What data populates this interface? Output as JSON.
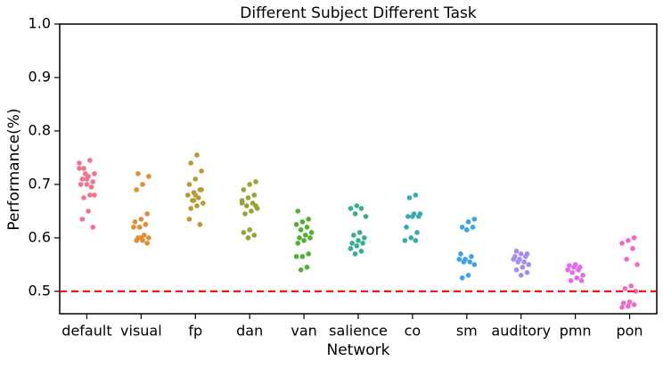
{
  "chart_data": {
    "type": "strip",
    "title": "Different Subject Different Task",
    "x_label": "Network",
    "y_label": "Performance(%)",
    "categories": [
      "default",
      "visual",
      "fp",
      "dan",
      "van",
      "salience",
      "co",
      "sm",
      "auditory",
      "pmn",
      "pon"
    ],
    "colors": [
      "#f77189",
      "#e68c2f",
      "#bb9832",
      "#97a431",
      "#50b131",
      "#34af8f",
      "#37abb2",
      "#3ba3ec",
      "#a48cf4",
      "#e866f4",
      "#f668c2"
    ],
    "values": [
      [
        0.74,
        0.745,
        0.73,
        0.72,
        0.715,
        0.71,
        0.705,
        0.7,
        0.7,
        0.695,
        0.72,
        0.73,
        0.68,
        0.675,
        0.68,
        0.65,
        0.635,
        0.62,
        0.71
      ],
      [
        0.72,
        0.715,
        0.7,
        0.69,
        0.645,
        0.635,
        0.63,
        0.625,
        0.62,
        0.62,
        0.605,
        0.6,
        0.6,
        0.595,
        0.595,
        0.59,
        0.6
      ],
      [
        0.755,
        0.74,
        0.725,
        0.71,
        0.7,
        0.69,
        0.685,
        0.68,
        0.675,
        0.67,
        0.665,
        0.66,
        0.655,
        0.69,
        0.68,
        0.635,
        0.625,
        0.67
      ],
      [
        0.705,
        0.7,
        0.69,
        0.68,
        0.675,
        0.67,
        0.665,
        0.66,
        0.655,
        0.65,
        0.645,
        0.66,
        0.615,
        0.61,
        0.605,
        0.6,
        0.665
      ],
      [
        0.65,
        0.635,
        0.63,
        0.625,
        0.62,
        0.615,
        0.61,
        0.605,
        0.6,
        0.6,
        0.595,
        0.59,
        0.57,
        0.565,
        0.565,
        0.545,
        0.54
      ],
      [
        0.66,
        0.655,
        0.655,
        0.645,
        0.64,
        0.61,
        0.605,
        0.6,
        0.595,
        0.59,
        0.59,
        0.585,
        0.58,
        0.575,
        0.57
      ],
      [
        0.68,
        0.675,
        0.645,
        0.645,
        0.64,
        0.64,
        0.64,
        0.62,
        0.61,
        0.6,
        0.595,
        0.595
      ],
      [
        0.635,
        0.63,
        0.62,
        0.62,
        0.615,
        0.57,
        0.565,
        0.56,
        0.56,
        0.555,
        0.555,
        0.55,
        0.53,
        0.525
      ],
      [
        0.575,
        0.57,
        0.57,
        0.565,
        0.565,
        0.56,
        0.56,
        0.555,
        0.555,
        0.55,
        0.545,
        0.54,
        0.535,
        0.53
      ],
      [
        0.55,
        0.548,
        0.545,
        0.545,
        0.54,
        0.54,
        0.535,
        0.53,
        0.525,
        0.52,
        0.52
      ],
      [
        0.6,
        0.595,
        0.59,
        0.58,
        0.56,
        0.55,
        0.51,
        0.505,
        0.5,
        0.48,
        0.478,
        0.475,
        0.472,
        0.47
      ]
    ],
    "ylim": [
      0.458,
      1.0
    ],
    "yticks": [
      0.5,
      0.6,
      0.7,
      0.8,
      0.9,
      {
        "value": 1.0,
        "label": "1.0"
      }
    ],
    "reference_line": {
      "value": 0.5,
      "color": "#ff0000"
    }
  }
}
